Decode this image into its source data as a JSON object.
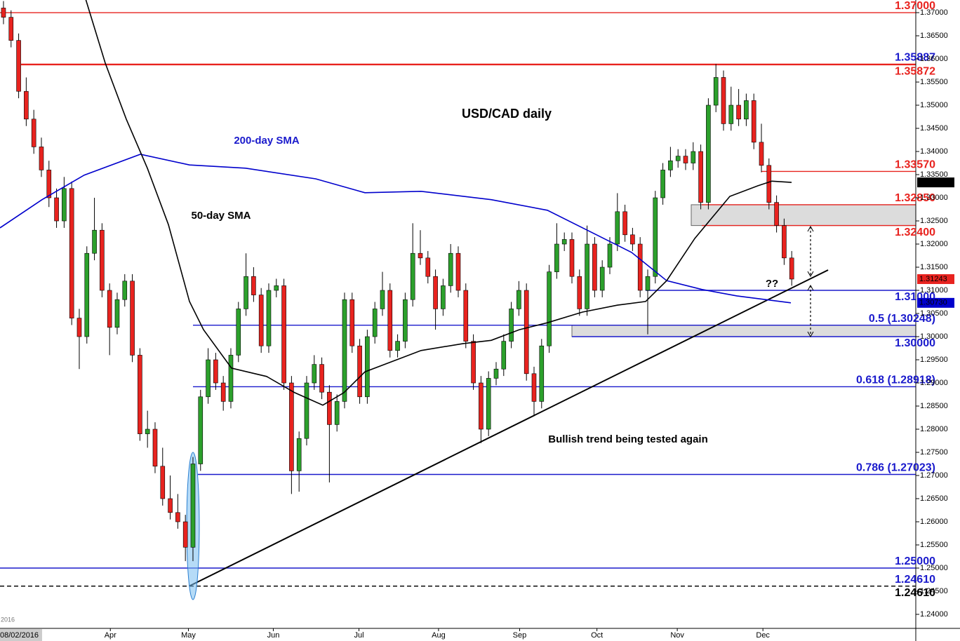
{
  "chart_data": {
    "type": "candlestick",
    "title": "USD/CAD daily",
    "xlabel": "2016",
    "up_color": "#2ca02c",
    "down_color": "#e8231f",
    "xlim": [
      -0.46,
      120.37
    ],
    "ylim": [
      1.23697,
      1.37273
    ],
    "xticks": [
      {
        "value": -0.46,
        "label": "08/02/2016"
      },
      {
        "value": 14.1,
        "label": "Apr"
      },
      {
        "value": 24.4,
        "label": "May"
      },
      {
        "value": 35.6,
        "label": "Jun"
      },
      {
        "value": 46.9,
        "label": "Jul"
      },
      {
        "value": 57.4,
        "label": "Aug"
      },
      {
        "value": 68.1,
        "label": "Sep"
      },
      {
        "value": 78.3,
        "label": "Oct"
      },
      {
        "value": 88.9,
        "label": "Nov"
      },
      {
        "value": 100.2,
        "label": "Dec"
      }
    ],
    "yticks": [
      {
        "value": 1.24,
        "label": "1.24000"
      },
      {
        "value": 1.245,
        "label": "1.24500"
      },
      {
        "value": 1.25,
        "label": "1.25000"
      },
      {
        "value": 1.255,
        "label": "1.25500"
      },
      {
        "value": 1.26,
        "label": "1.26000"
      },
      {
        "value": 1.265,
        "label": "1.26500"
      },
      {
        "value": 1.27,
        "label": "1.27000"
      },
      {
        "value": 1.275,
        "label": "1.27500"
      },
      {
        "value": 1.28,
        "label": "1.28000"
      },
      {
        "value": 1.285,
        "label": "1.28500"
      },
      {
        "value": 1.29,
        "label": "1.29000"
      },
      {
        "value": 1.295,
        "label": "1.29500"
      },
      {
        "value": 1.3,
        "label": "1.30000"
      },
      {
        "value": 1.305,
        "label": "1.30500"
      },
      {
        "value": 1.31,
        "label": "1.31000"
      },
      {
        "value": 1.315,
        "label": "1.31500"
      },
      {
        "value": 1.32,
        "label": "1.32000"
      },
      {
        "value": 1.325,
        "label": "1.32500"
      },
      {
        "value": 1.33,
        "label": "1.33000"
      },
      {
        "value": 1.335,
        "label": "1.33500"
      },
      {
        "value": 1.34,
        "label": "1.34000"
      },
      {
        "value": 1.345,
        "label": "1.34500"
      },
      {
        "value": 1.35,
        "label": "1.35000"
      },
      {
        "value": 1.355,
        "label": "1.35500"
      },
      {
        "value": 1.36,
        "label": "1.36000"
      },
      {
        "value": 1.365,
        "label": "1.36500"
      },
      {
        "value": 1.37,
        "label": "1.37000"
      }
    ],
    "candles": [
      [
        1.371,
        1.3725,
        1.3675,
        1.369
      ],
      [
        1.369,
        1.3705,
        1.3625,
        1.364
      ],
      [
        1.364,
        1.3655,
        1.3515,
        1.353
      ],
      [
        1.353,
        1.356,
        1.3455,
        1.347
      ],
      [
        1.347,
        1.349,
        1.3395,
        1.341
      ],
      [
        1.341,
        1.343,
        1.3345,
        1.336
      ],
      [
        1.336,
        1.338,
        1.328,
        1.33
      ],
      [
        1.33,
        1.332,
        1.3235,
        1.325
      ],
      [
        1.325,
        1.3345,
        1.3235,
        1.332
      ],
      [
        1.332,
        1.3335,
        1.3025,
        1.304
      ],
      [
        1.304,
        1.306,
        1.293,
        1.3
      ],
      [
        1.3,
        1.3195,
        1.2985,
        1.318
      ],
      [
        1.318,
        1.33,
        1.3165,
        1.323
      ],
      [
        1.323,
        1.3245,
        1.3085,
        1.31
      ],
      [
        1.31,
        1.3115,
        1.296,
        1.302
      ],
      [
        1.302,
        1.3095,
        1.3005,
        1.308
      ],
      [
        1.308,
        1.3135,
        1.3065,
        1.312
      ],
      [
        1.312,
        1.3135,
        1.2945,
        1.296
      ],
      [
        1.296,
        1.2975,
        1.2775,
        1.279
      ],
      [
        1.279,
        1.284,
        1.276,
        1.28
      ],
      [
        1.28,
        1.2815,
        1.2705,
        1.272
      ],
      [
        1.272,
        1.276,
        1.2635,
        1.265
      ],
      [
        1.265,
        1.27,
        1.2605,
        1.262
      ],
      [
        1.262,
        1.266,
        1.2585,
        1.26
      ],
      [
        1.26,
        1.2615,
        1.2515,
        1.2545
      ],
      [
        1.2545,
        1.274,
        1.2515,
        1.2725
      ],
      [
        1.2725,
        1.2885,
        1.271,
        1.287
      ],
      [
        1.287,
        1.2975,
        1.2855,
        1.295
      ],
      [
        1.295,
        1.2965,
        1.2885,
        1.29
      ],
      [
        1.29,
        1.2915,
        1.284,
        1.286
      ],
      [
        1.286,
        1.2975,
        1.2845,
        1.296
      ],
      [
        1.296,
        1.3075,
        1.2945,
        1.306
      ],
      [
        1.306,
        1.318,
        1.3045,
        1.313
      ],
      [
        1.313,
        1.315,
        1.3075,
        1.309
      ],
      [
        1.309,
        1.3105,
        1.2965,
        1.298
      ],
      [
        1.298,
        1.3115,
        1.2965,
        1.31
      ],
      [
        1.31,
        1.3125,
        1.3085,
        1.311
      ],
      [
        1.311,
        1.3125,
        1.2885,
        1.29
      ],
      [
        1.29,
        1.2915,
        1.266,
        1.271
      ],
      [
        1.271,
        1.2795,
        1.2665,
        1.278
      ],
      [
        1.278,
        1.2915,
        1.2765,
        1.29
      ],
      [
        1.29,
        1.296,
        1.2885,
        1.294
      ],
      [
        1.294,
        1.2955,
        1.2865,
        1.288
      ],
      [
        1.288,
        1.2895,
        1.2685,
        1.281
      ],
      [
        1.281,
        1.2875,
        1.2795,
        1.286
      ],
      [
        1.286,
        1.3095,
        1.2845,
        1.308
      ],
      [
        1.308,
        1.3095,
        1.2965,
        1.298
      ],
      [
        1.298,
        1.2995,
        1.2855,
        1.287
      ],
      [
        1.287,
        1.3015,
        1.2855,
        1.3
      ],
      [
        1.3,
        1.3075,
        1.2985,
        1.306
      ],
      [
        1.306,
        1.314,
        1.3045,
        1.31
      ],
      [
        1.31,
        1.3115,
        1.2955,
        1.297
      ],
      [
        1.297,
        1.3005,
        1.2955,
        1.299
      ],
      [
        1.299,
        1.3095,
        1.2975,
        1.308
      ],
      [
        1.308,
        1.3245,
        1.3065,
        1.318
      ],
      [
        1.318,
        1.323,
        1.3155,
        1.317
      ],
      [
        1.317,
        1.3185,
        1.3115,
        1.313
      ],
      [
        1.313,
        1.3145,
        1.3015,
        1.306
      ],
      [
        1.306,
        1.3125,
        1.3045,
        1.311
      ],
      [
        1.311,
        1.32,
        1.3095,
        1.318
      ],
      [
        1.318,
        1.3195,
        1.3085,
        1.31
      ],
      [
        1.31,
        1.3115,
        1.2975,
        1.299
      ],
      [
        1.299,
        1.3005,
        1.2885,
        1.29
      ],
      [
        1.29,
        1.2915,
        1.277,
        1.28
      ],
      [
        1.28,
        1.2925,
        1.2785,
        1.291
      ],
      [
        1.291,
        1.2945,
        1.2895,
        1.293
      ],
      [
        1.293,
        1.3005,
        1.2915,
        1.299
      ],
      [
        1.299,
        1.3075,
        1.2975,
        1.306
      ],
      [
        1.306,
        1.312,
        1.3045,
        1.31
      ],
      [
        1.31,
        1.3115,
        1.2905,
        1.292
      ],
      [
        1.292,
        1.2935,
        1.283,
        1.286
      ],
      [
        1.286,
        1.2995,
        1.2845,
        1.298
      ],
      [
        1.298,
        1.3155,
        1.2965,
        1.314
      ],
      [
        1.314,
        1.3245,
        1.3125,
        1.32
      ],
      [
        1.32,
        1.3225,
        1.3185,
        1.321
      ],
      [
        1.321,
        1.3225,
        1.3115,
        1.313
      ],
      [
        1.313,
        1.3145,
        1.3045,
        1.306
      ],
      [
        1.306,
        1.324,
        1.3045,
        1.32
      ],
      [
        1.32,
        1.3215,
        1.3085,
        1.31
      ],
      [
        1.31,
        1.3165,
        1.3085,
        1.315
      ],
      [
        1.315,
        1.3215,
        1.3135,
        1.32
      ],
      [
        1.32,
        1.331,
        1.3185,
        1.327
      ],
      [
        1.327,
        1.3285,
        1.3205,
        1.322
      ],
      [
        1.322,
        1.3235,
        1.3185,
        1.32
      ],
      [
        1.32,
        1.3215,
        1.3085,
        1.31
      ],
      [
        1.31,
        1.3145,
        1.3005,
        1.313
      ],
      [
        1.313,
        1.3315,
        1.3115,
        1.33
      ],
      [
        1.33,
        1.3375,
        1.3285,
        1.336
      ],
      [
        1.336,
        1.341,
        1.3345,
        1.338
      ],
      [
        1.338,
        1.3405,
        1.3365,
        1.339
      ],
      [
        1.339,
        1.3405,
        1.336,
        1.3375
      ],
      [
        1.3375,
        1.342,
        1.336,
        1.34
      ],
      [
        1.34,
        1.3415,
        1.3275,
        1.329
      ],
      [
        1.329,
        1.3515,
        1.3275,
        1.35
      ],
      [
        1.35,
        1.3589,
        1.3485,
        1.356
      ],
      [
        1.356,
        1.3575,
        1.3445,
        1.346
      ],
      [
        1.346,
        1.354,
        1.3445,
        1.35
      ],
      [
        1.35,
        1.3535,
        1.3455,
        1.347
      ],
      [
        1.347,
        1.3525,
        1.3455,
        1.351
      ],
      [
        1.351,
        1.3525,
        1.3405,
        1.342
      ],
      [
        1.342,
        1.346,
        1.3355,
        1.337
      ],
      [
        1.337,
        1.3385,
        1.3275,
        1.329
      ],
      [
        1.329,
        1.3305,
        1.3225,
        1.324
      ],
      [
        1.324,
        1.3255,
        1.3155,
        1.317
      ],
      [
        1.317,
        1.3185,
        1.311,
        1.31243
      ]
    ],
    "last_label": "1.31243",
    "series": [
      {
        "name": "200-day SMA",
        "color": "#0000cc",
        "end_label": "1.30730",
        "x": [
          -0.46,
          5.09,
          10.65,
          18.06,
          24.54,
          31.94,
          41.2,
          47.69,
          55.09,
          64.35,
          71.76,
          78.24,
          82.87,
          87.5,
          92.13,
          96.76,
          103.89
        ],
        "values": [
          1.3235,
          1.3296,
          1.3349,
          1.3394,
          1.3371,
          1.3364,
          1.3341,
          1.3311,
          1.3314,
          1.3296,
          1.3273,
          1.322,
          1.3182,
          1.3121,
          1.3102,
          1.3088,
          1.3073
        ]
      },
      {
        "name": "50-day SMA",
        "color": "#000000",
        "end_label": "1.33332",
        "x": [
          10.83,
          13.43,
          16.2,
          18.98,
          21.76,
          24.54,
          26.39,
          30.09,
          34.72,
          38.43,
          42.13,
          44.91,
          47.69,
          51.39,
          55.09,
          60.65,
          64.35,
          68.06,
          71.76,
          76.39,
          81.02,
          84.72,
          87.5,
          91.2,
          95.83,
          99.54,
          101.39,
          103.98
        ],
        "values": [
          1.373,
          1.3591,
          1.347,
          1.3364,
          1.3242,
          1.3076,
          1.3015,
          1.2932,
          1.2914,
          1.2879,
          1.2852,
          1.2879,
          1.2924,
          1.2947,
          1.297,
          1.2985,
          1.2992,
          1.3015,
          1.303,
          1.3053,
          1.3068,
          1.3076,
          1.3121,
          1.3212,
          1.3303,
          1.3326,
          1.3336,
          1.33332
        ]
      }
    ],
    "levels": [
      {
        "value": 1.37,
        "label": "1.37000",
        "color": "#e8231f",
        "line_color": "#e8231f"
      },
      {
        "value": 1.35887,
        "label": "1.35887",
        "color": "#1a1acc",
        "line_color": "#e8231f"
      },
      {
        "value": 1.35872,
        "label": "1.35872",
        "color": "#e8231f",
        "line_color": "#e8231f"
      },
      {
        "value": 1.3357,
        "label": "1.33570",
        "color": "#e8231f",
        "line_color": "#e8231f"
      },
      {
        "value": 1.3285,
        "label": "1.32850",
        "color": "#e8231f",
        "line_color": "#e8231f"
      },
      {
        "value": 1.324,
        "label": "1.32400",
        "color": "#e8231f",
        "line_color": "#e8231f"
      },
      {
        "value": 1.31,
        "label": "1.31000",
        "color": "#1a1acc",
        "line_color": "#1a1acc"
      },
      {
        "value": 1.30248,
        "label": "0.5 (1.30248)",
        "color": "#1a1acc",
        "line_color": "#1a1acc"
      },
      {
        "value": 1.3,
        "label": "1.30000",
        "color": "#1a1acc",
        "line_color": "#1a1acc"
      },
      {
        "value": 1.28918,
        "label": "0.618 (1.28918)",
        "color": "#1a1acc",
        "line_color": "#1a1acc"
      },
      {
        "value": 1.27023,
        "label": "0.786 (1.27023)",
        "color": "#1a1acc",
        "line_color": "#1a1acc"
      },
      {
        "value": 1.25,
        "label": "1.25000",
        "color": "#1a1acc",
        "line_color": "#1a1acc"
      },
      {
        "value": 1.2461,
        "label": "1.24610",
        "color": "#1a1acc",
        "line_color": "#000000",
        "dashed": true
      },
      {
        "value": 1.2461,
        "label": "1.24610",
        "color": "#000000",
        "line_color": "#000000",
        "dashed": true
      }
    ],
    "trendline": {
      "x": [
        24.5,
        108.8
      ],
      "values": [
        1.2461,
        1.3144
      ]
    },
    "annotations": [
      "200-day SMA",
      "50-day SMA",
      "Bullish trend being tested again",
      "??"
    ]
  }
}
